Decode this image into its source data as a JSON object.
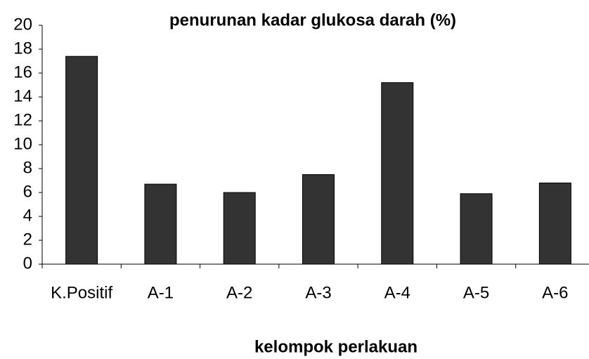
{
  "chart_data": {
    "type": "bar",
    "title": "penurunan kadar glukosa darah (%)",
    "x_label": "kelompok perlakuan",
    "categories": [
      "K.Positif",
      "A-1",
      "A-2",
      "A-3",
      "A-4",
      "A-5",
      "A-6"
    ],
    "values": [
      17.4,
      6.7,
      6.0,
      7.5,
      15.2,
      5.9,
      6.8
    ],
    "color": "#333333",
    "ylim": [
      0,
      20
    ],
    "yticks": [
      0,
      2,
      4,
      6,
      8,
      10,
      12,
      14,
      16,
      18,
      20
    ],
    "grid": false
  }
}
